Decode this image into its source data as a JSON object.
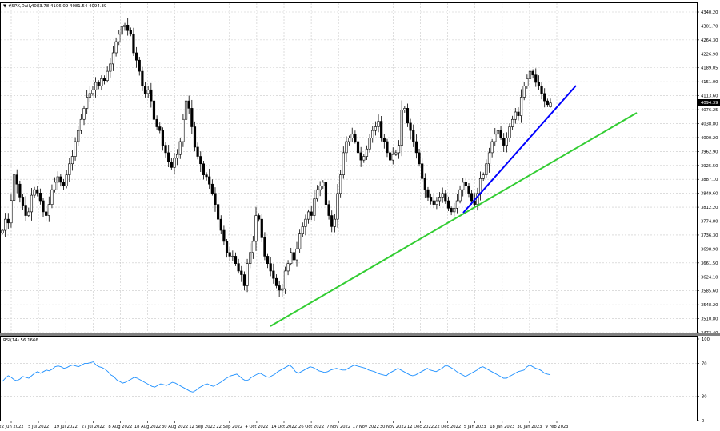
{
  "header": {
    "symbol_label": "#SPX,Daily",
    "ohlc_text": "4083.78 4106.09 4081.54 4094.39"
  },
  "rsi_header": {
    "label": "RSI(14) 56.1666"
  },
  "price_axis": {
    "ticks": [
      "4340.20",
      "4301.70",
      "4264.30",
      "4226.90",
      "4189.05",
      "4151.00",
      "4113.60",
      "4076.25",
      "4038.80",
      "4000.20",
      "3962.90",
      "3925.50",
      "3887.10",
      "3849.60",
      "3812.20",
      "3774.80",
      "3736.30",
      "3698.90",
      "3661.50",
      "3624.10",
      "3585.60",
      "3548.20",
      "3510.80",
      "3473.40"
    ],
    "current_price_label": "4094.39"
  },
  "rsi_axis": {
    "ticks": [
      "100",
      "70",
      "30",
      "0"
    ]
  },
  "date_axis": {
    "ticks": [
      "22 Jun 2022",
      "5 Jul 2022",
      "19 Jul 2022",
      "27 Jul 2022",
      "8 Aug 2022",
      "18 Aug 2022",
      "30 Aug 2022",
      "12 Sep 2022",
      "22 Sep 2022",
      "4 Oct 2022",
      "14 Oct 2022",
      "26 Oct 2022",
      "7 Nov 2022",
      "17 Nov 2022",
      "30 Nov 2022",
      "12 Dec 2022",
      "22 Dec 2022",
      "5 Jan 2023",
      "18 Jan 2023",
      "30 Jan 2023",
      "9 Feb 2023"
    ]
  },
  "colors": {
    "grid": "#c8c8c8",
    "candle_bull_fill": "#ffffff",
    "candle_bear_fill": "#000000",
    "rsi_line": "#1e90ff",
    "trendline_green": "#32cd32",
    "trendline_blue": "#0000ff",
    "price_tag_bg": "#000000"
  },
  "chart_data": {
    "type": "candlestick",
    "symbol": "#SPX",
    "timeframe": "Daily",
    "last_bar": {
      "open": 4083.78,
      "high": 4106.09,
      "low": 4081.54,
      "close": 4094.39
    },
    "y_range": [
      3473.4,
      4340.2
    ],
    "closes": [
      3750,
      3780,
      3770,
      3831,
      3900,
      3875,
      3840,
      3818,
      3790,
      3800,
      3845,
      3860,
      3851,
      3830,
      3800,
      3790,
      3820,
      3860,
      3880,
      3895,
      3880,
      3870,
      3900,
      3930,
      3950,
      3990,
      4020,
      4050,
      4080,
      4110,
      4120,
      4130,
      4150,
      4140,
      4160,
      4155,
      4180,
      4200,
      4230,
      4260,
      4280,
      4300,
      4305,
      4290,
      4280,
      4230,
      4210,
      4180,
      4140,
      4120,
      4130,
      4100,
      4050,
      4030,
      4020,
      3980,
      3960,
      3935,
      3920,
      3945,
      3955,
      3990,
      4050,
      4100,
      4080,
      4030,
      3975,
      3950,
      3930,
      3900,
      3895,
      3875,
      3850,
      3820,
      3780,
      3750,
      3720,
      3690,
      3680,
      3680,
      3660,
      3640,
      3630,
      3600,
      3660,
      3690,
      3720,
      3790,
      3780,
      3730,
      3680,
      3660,
      3640,
      3620,
      3600,
      3588,
      3592,
      3640,
      3660,
      3690,
      3670,
      3700,
      3740,
      3760,
      3780,
      3800,
      3790,
      3835,
      3860,
      3870,
      3880,
      3820,
      3790,
      3760,
      3780,
      3850,
      3900,
      3960,
      3990,
      4000,
      4010,
      3990,
      3960,
      3940,
      3950,
      3970,
      4000,
      4020,
      4030,
      4045,
      4000,
      3990,
      3960,
      3940,
      3955,
      3960,
      3980,
      4075,
      4080,
      4040,
      4020,
      3990,
      3960,
      3930,
      3890,
      3860,
      3840,
      3830,
      3820,
      3830,
      3840,
      3850,
      3830,
      3810,
      3800,
      3810,
      3830,
      3860,
      3880,
      3870,
      3850,
      3830,
      3820,
      3850,
      3890,
      3900,
      3930,
      3960,
      3990,
      4010,
      4020,
      4000,
      3980,
      4000,
      4030,
      4050,
      4070,
      4060,
      4110,
      4140,
      4160,
      4180,
      4170,
      4150,
      4140,
      4120,
      4100,
      4090,
      4094.39
    ],
    "rsi": {
      "name": "RSI(14)",
      "current": 56.1666,
      "y_range": [
        0,
        100
      ],
      "levels": [
        70,
        30
      ],
      "values": [
        48,
        52,
        55,
        53,
        50,
        49,
        51,
        54,
        53,
        52,
        55,
        58,
        60,
        58,
        60,
        62,
        61,
        63,
        66,
        67,
        66,
        64,
        65,
        67,
        68,
        67,
        66,
        68,
        70,
        70,
        71,
        72,
        68,
        66,
        65,
        63,
        60,
        56,
        54,
        50,
        48,
        46,
        47,
        49,
        51,
        53,
        52,
        50,
        48,
        46,
        44,
        42,
        41,
        43,
        45,
        44,
        43,
        45,
        47,
        46,
        44,
        42,
        40,
        38,
        36,
        35,
        37,
        40,
        42,
        44,
        45,
        43,
        42,
        44,
        46,
        48,
        51,
        53,
        55,
        56,
        57,
        54,
        51,
        49,
        50,
        53,
        55,
        57,
        58,
        56,
        54,
        53,
        55,
        57,
        60,
        62,
        64,
        66,
        68,
        65,
        60,
        58,
        60,
        62,
        64,
        66,
        65,
        63,
        61,
        60,
        59,
        60,
        62,
        63,
        64,
        63,
        62,
        62,
        64,
        66,
        68,
        67,
        66,
        65,
        64,
        62,
        61,
        60,
        58,
        57,
        56,
        55,
        58,
        60,
        62,
        64,
        62,
        60,
        58,
        56,
        55,
        56,
        58,
        60,
        62,
        64,
        62,
        61,
        60,
        62,
        64,
        67,
        67,
        65,
        63,
        60,
        58,
        56,
        54,
        56,
        58,
        60,
        62,
        65,
        66,
        64,
        62,
        60,
        58,
        56,
        54,
        52,
        52,
        54,
        56,
        58,
        60,
        61,
        62,
        66,
        68,
        66,
        64,
        63,
        61,
        58,
        57,
        56.1666
      ]
    },
    "trendlines": [
      {
        "color": "green",
        "from": {
          "date": "12 Oct 2022",
          "price": 3491
        },
        "to": {
          "date": "21 Feb 2023",
          "price": 4062
        }
      },
      {
        "color": "blue",
        "from": {
          "date": "5 Jan 2023",
          "price": 3800
        },
        "to": {
          "date": "17 Feb 2023",
          "price": 4137
        }
      }
    ]
  }
}
